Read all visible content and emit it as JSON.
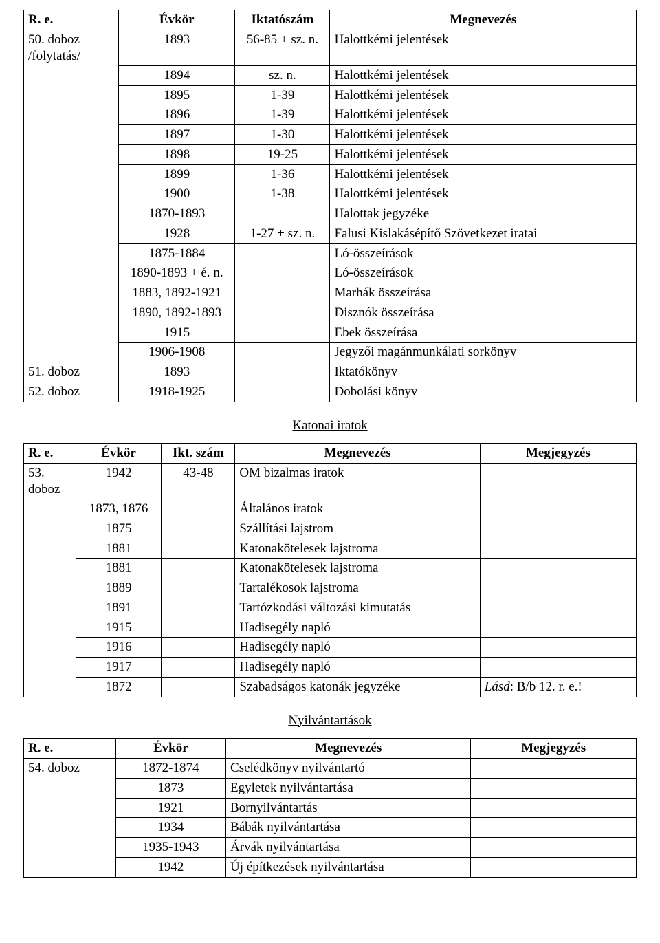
{
  "table1": {
    "columns": [
      "R. e.",
      "Évkör",
      "Iktatószám",
      "Megnevezés"
    ],
    "col_widths": [
      "15.5%",
      "19%",
      "15.5%",
      "50%"
    ],
    "header_align": [
      "left",
      "center",
      "center",
      "center"
    ],
    "body_align": [
      "left",
      "center",
      "center",
      "left"
    ],
    "group_labels": [
      "50. doboz /folytatás/",
      "51. doboz",
      "52. doboz"
    ],
    "rows": [
      {
        "group": 0,
        "evkor": "1893",
        "ikt": "56-85 + sz. n.",
        "megn": "Halottkémi jelentések"
      },
      {
        "group": 0,
        "evkor": "1894",
        "ikt": "sz. n.",
        "megn": "Halottkémi jelentések"
      },
      {
        "group": 0,
        "evkor": "1895",
        "ikt": "1-39",
        "megn": "Halottkémi jelentések"
      },
      {
        "group": 0,
        "evkor": "1896",
        "ikt": "1-39",
        "megn": "Halottkémi jelentések"
      },
      {
        "group": 0,
        "evkor": "1897",
        "ikt": "1-30",
        "megn": "Halottkémi jelentések"
      },
      {
        "group": 0,
        "evkor": "1898",
        "ikt": "19-25",
        "megn": "Halottkémi jelentések"
      },
      {
        "group": 0,
        "evkor": "1899",
        "ikt": "1-36",
        "megn": "Halottkémi jelentések"
      },
      {
        "group": 0,
        "evkor": "1900",
        "ikt": "1-38",
        "megn": "Halottkémi jelentések"
      },
      {
        "group": 0,
        "evkor": "1870-1893",
        "ikt": "",
        "megn": "Halottak jegyzéke"
      },
      {
        "group": 0,
        "evkor": "1928",
        "ikt": "1-27 + sz. n.",
        "megn": "Falusi Kislakásépítő Szövetkezet iratai"
      },
      {
        "group": 0,
        "evkor": "1875-1884",
        "ikt": "",
        "megn": "Ló-összeírások"
      },
      {
        "group": 0,
        "evkor": "1890-1893 + é. n.",
        "ikt": "",
        "megn": "Ló-összeírások"
      },
      {
        "group": 0,
        "evkor": "1883, 1892-1921",
        "ikt": "",
        "megn": "Marhák összeírása"
      },
      {
        "group": 0,
        "evkor": "1890, 1892-1893",
        "ikt": "",
        "megn": "Disznók összeírása"
      },
      {
        "group": 0,
        "evkor": "1915",
        "ikt": "",
        "megn": "Ebek összeírása"
      },
      {
        "group": 0,
        "evkor": "1906-1908",
        "ikt": "",
        "megn": "Jegyzői magánmunkálati sorkönyv"
      },
      {
        "group": 1,
        "evkor": "1893",
        "ikt": "",
        "megn": "Iktatókönyv"
      },
      {
        "group": 2,
        "evkor": "1918-1925",
        "ikt": "",
        "megn": "Dobolási könyv"
      }
    ]
  },
  "section2_title": "Katonai iratok",
  "table2": {
    "columns": [
      "R. e.",
      "Évkör",
      "Ikt. szám",
      "Megnevezés",
      "Megjegyzés"
    ],
    "col_widths": [
      "8.5%",
      "14%",
      "12%",
      "40%",
      "25.5%"
    ],
    "header_align": [
      "left",
      "center",
      "center",
      "center",
      "center"
    ],
    "body_align": [
      "left",
      "center",
      "center",
      "left",
      "left"
    ],
    "group_labels": [
      "53. doboz"
    ],
    "rows": [
      {
        "group": 0,
        "evkor": "1942",
        "ikt": "43-48",
        "megn": "OM bizalmas iratok",
        "megj": ""
      },
      {
        "group": 0,
        "evkor": "1873, 1876",
        "ikt": "",
        "megn": "Általános iratok",
        "megj": ""
      },
      {
        "group": 0,
        "evkor": "1875",
        "ikt": "",
        "megn": "Szállítási lajstrom",
        "megj": ""
      },
      {
        "group": 0,
        "evkor": "1881",
        "ikt": "",
        "megn": "Katonakötelesek lajstroma",
        "megj": ""
      },
      {
        "group": 0,
        "evkor": "1881",
        "ikt": "",
        "megn": "Katonakötelesek lajstroma",
        "megj": ""
      },
      {
        "group": 0,
        "evkor": "1889",
        "ikt": "",
        "megn": "Tartalékosok lajstroma",
        "megj": ""
      },
      {
        "group": 0,
        "evkor": "1891",
        "ikt": "",
        "megn": "Tartózkodási változási kimutatás",
        "megj": ""
      },
      {
        "group": 0,
        "evkor": "1915",
        "ikt": "",
        "megn": "Hadisegély napló",
        "megj": ""
      },
      {
        "group": 0,
        "evkor": "1916",
        "ikt": "",
        "megn": "Hadisegély napló",
        "megj": ""
      },
      {
        "group": 0,
        "evkor": "1917",
        "ikt": "",
        "megn": "Hadisegély napló",
        "megj": ""
      },
      {
        "group": 0,
        "evkor": "1872",
        "ikt": "",
        "megn": "Szabadságos katonák jegyzéke",
        "megj": "Lásd: B/b 12. r. e.!",
        "megj_italic_prefix": "Lásd"
      }
    ]
  },
  "section3_title": "Nyilvántartások",
  "table3": {
    "columns": [
      "R. e.",
      "Évkör",
      "Megnevezés",
      "Megjegyzés"
    ],
    "col_widths": [
      "15%",
      "18%",
      "40%",
      "27%"
    ],
    "header_align": [
      "left",
      "center",
      "center",
      "center"
    ],
    "body_align": [
      "left",
      "center",
      "left",
      "left"
    ],
    "group_labels": [
      "54. doboz"
    ],
    "rows": [
      {
        "group": 0,
        "evkor": "1872-1874",
        "megn": "Cselédkönyv nyilvántartó",
        "megj": ""
      },
      {
        "group": 0,
        "evkor": "1873",
        "megn": "Egyletek nyilvántartása",
        "megj": ""
      },
      {
        "group": 0,
        "evkor": "1921",
        "megn": "Bornyilvántartás",
        "megj": ""
      },
      {
        "group": 0,
        "evkor": "1934",
        "megn": "Bábák nyilvántartása",
        "megj": ""
      },
      {
        "group": 0,
        "evkor": "1935-1943",
        "megn": "Árvák nyilvántartása",
        "megj": ""
      },
      {
        "group": 0,
        "evkor": "1942",
        "megn": "Új építkezések nyilvántartása",
        "megj": ""
      }
    ]
  }
}
